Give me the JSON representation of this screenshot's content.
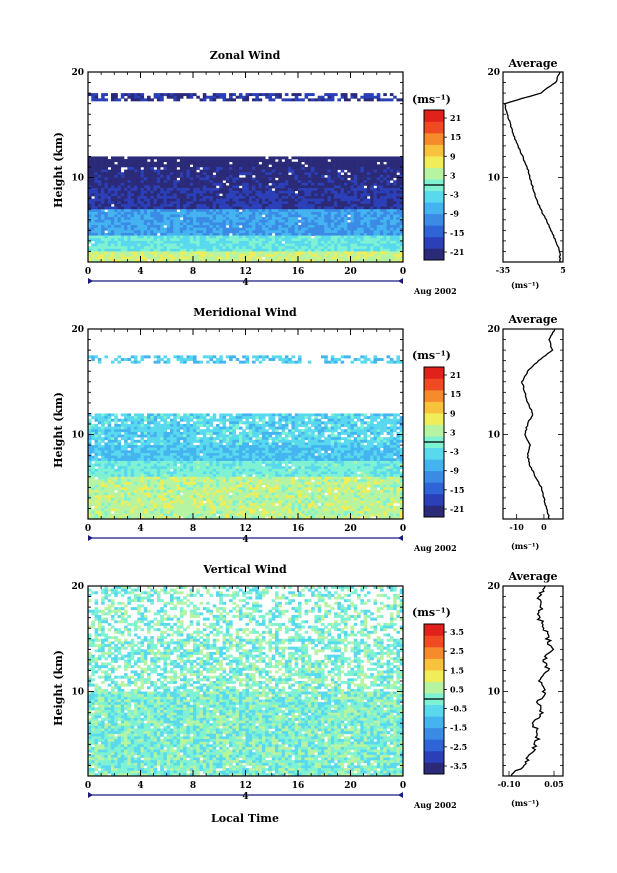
{
  "figure": {
    "x_axis_label": "Local Time",
    "date_label": "Aug 2002",
    "day_label": "4",
    "avg_title": "Average",
    "units": "(ms⁻¹)",
    "avg_xlabel": "(ms⁻¹)",
    "height_label": "Height (km)"
  },
  "colors": {
    "scale": [
      "#2b2a78",
      "#2a3fb8",
      "#2f63d8",
      "#3a8ae6",
      "#44b4f0",
      "#59d9ee",
      "#7ef2d2",
      "#b6f4a2",
      "#f0ee58",
      "#f8c23a",
      "#f78a2a",
      "#ef4a22",
      "#e0221c"
    ]
  },
  "chart_data": [
    {
      "type": "heatmap",
      "title": "Zonal Wind",
      "x_ticks": [
        "0",
        "4",
        "8",
        "12",
        "16",
        "20",
        "0"
      ],
      "y_ticks": [
        "20",
        "10"
      ],
      "xlim": [
        0,
        24
      ],
      "ylim": [
        2,
        20
      ],
      "colorbar_ticks": [
        "21",
        "15",
        "9",
        "3",
        "-3",
        "-9",
        "-15",
        "-21"
      ],
      "colorbar_range": [
        -24,
        24
      ],
      "profile": {
        "title": "Average",
        "x_ticks": [
          "-35",
          "5"
        ],
        "xlim": [
          -35,
          5
        ],
        "points": [
          [
            3,
            2
          ],
          [
            3,
            3
          ],
          [
            0,
            4
          ],
          [
            -3,
            5
          ],
          [
            -6,
            6
          ],
          [
            -10,
            7
          ],
          [
            -13,
            8
          ],
          [
            -15,
            9
          ],
          [
            -17,
            10
          ],
          [
            -19,
            11
          ],
          [
            -22,
            12
          ],
          [
            -25,
            13
          ],
          [
            -28,
            14
          ],
          [
            -30,
            15
          ],
          [
            -32,
            16
          ],
          [
            -34,
            17
          ],
          [
            -10,
            18
          ],
          [
            0,
            19
          ],
          [
            3,
            20
          ]
        ]
      }
    },
    {
      "type": "heatmap",
      "title": "Meridional Wind",
      "x_ticks": [
        "0",
        "4",
        "8",
        "12",
        "16",
        "20",
        "0"
      ],
      "y_ticks": [
        "20",
        "10"
      ],
      "xlim": [
        0,
        24
      ],
      "ylim": [
        2,
        20
      ],
      "colorbar_ticks": [
        "21",
        "15",
        "9",
        "3",
        "-3",
        "-9",
        "-15",
        "-21"
      ],
      "colorbar_range": [
        -24,
        24
      ],
      "profile": {
        "title": "Average",
        "x_ticks": [
          "-10",
          "0"
        ],
        "xlim": [
          -15,
          7
        ],
        "points": [
          [
            2,
            2
          ],
          [
            1,
            3
          ],
          [
            0,
            4
          ],
          [
            -1,
            5
          ],
          [
            -3,
            6
          ],
          [
            -5,
            7
          ],
          [
            -6,
            8
          ],
          [
            -5,
            9
          ],
          [
            -7,
            10
          ],
          [
            -6,
            11
          ],
          [
            -4,
            12
          ],
          [
            -6,
            13
          ],
          [
            -7,
            14
          ],
          [
            -8,
            15
          ],
          [
            -6,
            16
          ],
          [
            -2,
            17
          ],
          [
            3,
            18
          ],
          [
            2,
            19
          ],
          [
            4,
            20
          ]
        ]
      }
    },
    {
      "type": "heatmap",
      "title": "Vertical Wind",
      "x_ticks": [
        "0",
        "4",
        "8",
        "12",
        "16",
        "20",
        "0"
      ],
      "y_ticks": [
        "20",
        "10"
      ],
      "xlim": [
        0,
        24
      ],
      "ylim": [
        2,
        20
      ],
      "colorbar_ticks": [
        "3.5",
        "2.5",
        "1.5",
        "0.5",
        "-0.5",
        "-1.5",
        "-2.5",
        "-3.5"
      ],
      "colorbar_range": [
        -4,
        4
      ],
      "profile": {
        "title": "Average",
        "x_ticks": [
          "-0.10",
          "0.05"
        ],
        "xlim": [
          -0.12,
          0.08
        ],
        "points": [
          [
            -0.1,
            2
          ],
          [
            -0.05,
            3
          ],
          [
            -0.03,
            4
          ],
          [
            -0.01,
            5
          ],
          [
            0.0,
            6
          ],
          [
            -0.02,
            7
          ],
          [
            0.01,
            8
          ],
          [
            0.0,
            9
          ],
          [
            0.02,
            10
          ],
          [
            0.0,
            11
          ],
          [
            0.03,
            12
          ],
          [
            0.02,
            13
          ],
          [
            0.04,
            14
          ],
          [
            0.03,
            15
          ],
          [
            0.02,
            16
          ],
          [
            0.0,
            17
          ],
          [
            0.01,
            18
          ],
          [
            0.0,
            19
          ],
          [
            0.02,
            20
          ]
        ]
      }
    }
  ]
}
